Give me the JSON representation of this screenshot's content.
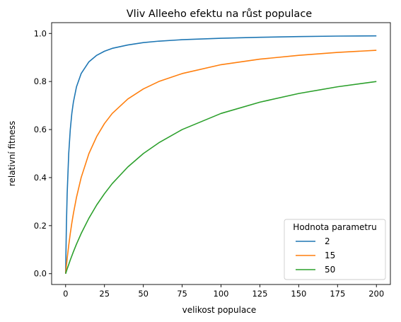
{
  "chart_data": {
    "type": "line",
    "title": "Vliv Alleeho efektu na růst populace",
    "xlabel": "velikost populace",
    "ylabel": "relativní fitness",
    "xlim": [
      -9,
      209
    ],
    "ylim": [
      -0.045,
      1.045
    ],
    "x_ticks": [
      0,
      25,
      50,
      75,
      100,
      125,
      150,
      175,
      200
    ],
    "y_ticks": [
      0.0,
      0.2,
      0.4,
      0.6,
      0.8,
      1.0
    ],
    "x_tick_labels": [
      "0",
      "25",
      "50",
      "75",
      "100",
      "125",
      "150",
      "175",
      "200"
    ],
    "y_tick_labels": [
      "0.0",
      "0.2",
      "0.4",
      "0.6",
      "0.8",
      "1.0"
    ],
    "grid": false,
    "legend": {
      "title": "Hodnota parametru",
      "placement": "lower-right"
    },
    "x": [
      0,
      0.5,
      1,
      2,
      3,
      4,
      5,
      7,
      10,
      15,
      20,
      25,
      30,
      40,
      50,
      60,
      75,
      100,
      125,
      150,
      175,
      200
    ],
    "series": [
      {
        "name": "2",
        "color": "#1f77b4",
        "values": [
          0,
          0.2,
          0.333,
          0.5,
          0.6,
          0.667,
          0.714,
          0.778,
          0.833,
          0.882,
          0.909,
          0.926,
          0.938,
          0.952,
          0.962,
          0.968,
          0.974,
          0.98,
          0.984,
          0.987,
          0.989,
          0.99
        ]
      },
      {
        "name": "15",
        "color": "#ff7f0e",
        "values": [
          0,
          0.032,
          0.063,
          0.118,
          0.167,
          0.211,
          0.25,
          0.318,
          0.4,
          0.5,
          0.571,
          0.625,
          0.667,
          0.727,
          0.769,
          0.8,
          0.833,
          0.87,
          0.893,
          0.909,
          0.921,
          0.93
        ]
      },
      {
        "name": "50",
        "color": "#2ca02c",
        "values": [
          0,
          0.01,
          0.02,
          0.038,
          0.057,
          0.074,
          0.091,
          0.123,
          0.167,
          0.231,
          0.286,
          0.333,
          0.375,
          0.444,
          0.5,
          0.545,
          0.6,
          0.667,
          0.714,
          0.75,
          0.778,
          0.8
        ]
      }
    ]
  }
}
